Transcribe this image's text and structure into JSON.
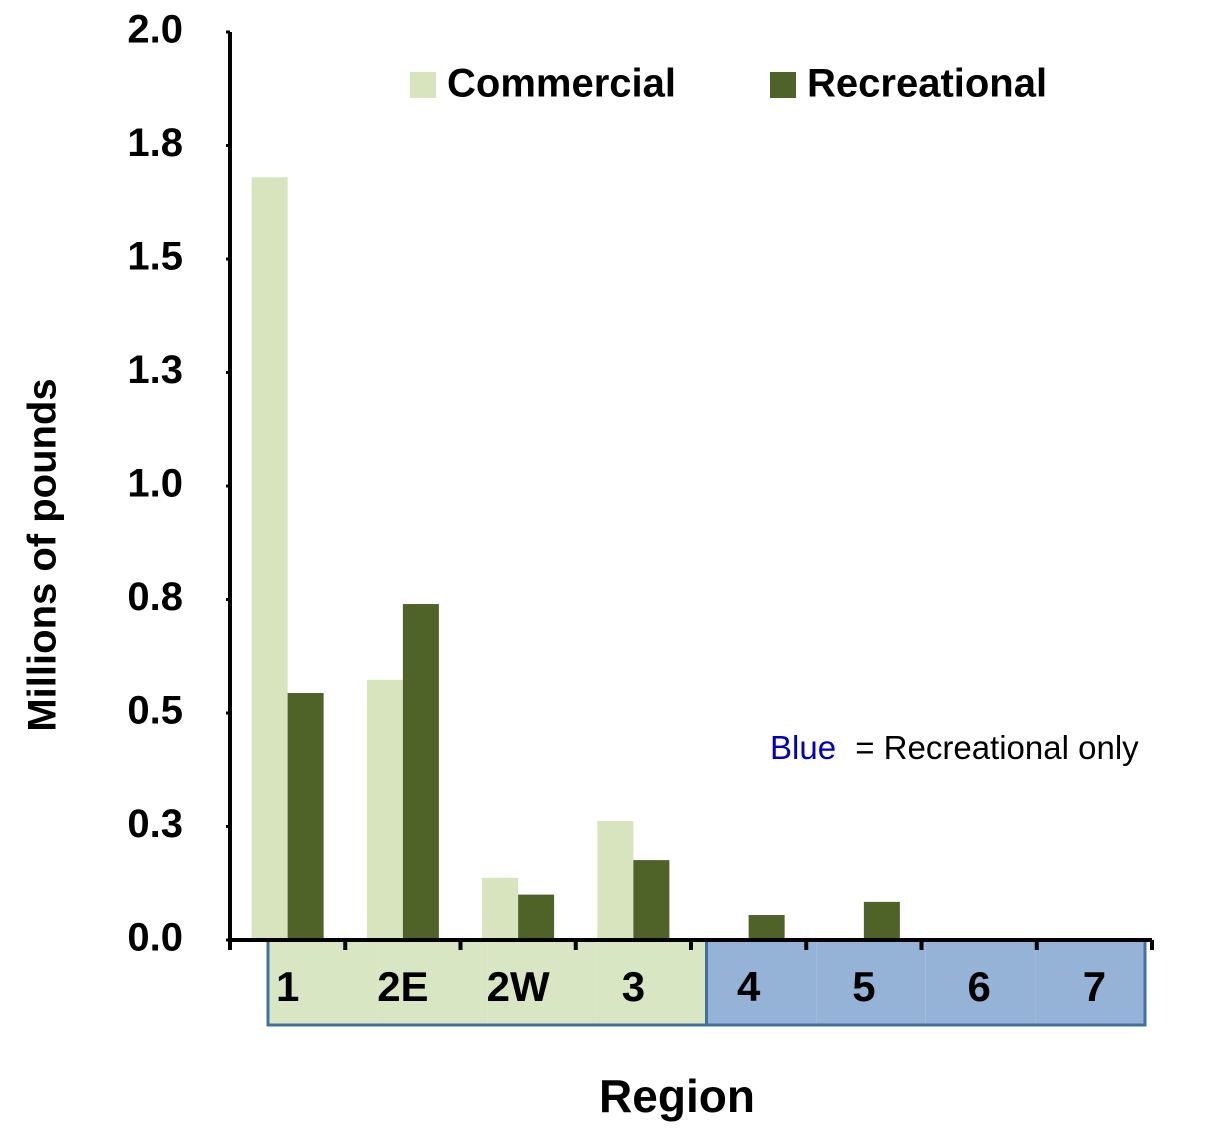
{
  "chart_data": {
    "type": "bar",
    "x_label": "Region",
    "y_label": "Millions of pounds",
    "categories": [
      "1",
      "2E",
      "2W",
      "3",
      "4",
      "5",
      "6",
      "7"
    ],
    "category_box_colors": [
      "#d9e6c3",
      "#d9e6c3",
      "#d9e6c3",
      "#d9e6c3",
      "#95b3d7",
      "#95b3d7",
      "#95b3d7",
      "#95b3d7"
    ],
    "series": [
      {
        "name": "Commercial",
        "color": "#d7e4bd",
        "values": [
          1.68,
          0.573,
          0.137,
          0.262,
          null,
          null,
          null,
          null
        ]
      },
      {
        "name": "Recreational",
        "color": "#4f6228",
        "values": [
          0.544,
          0.74,
          0.1,
          0.176,
          0.055,
          0.084,
          null,
          null
        ]
      }
    ],
    "ylim": [
      0,
      2
    ],
    "yticks": [
      {
        "value": 0,
        "label": "0.0"
      },
      {
        "value": 0.25,
        "label": "0.3"
      },
      {
        "value": 0.5,
        "label": "0.5"
      },
      {
        "value": 0.75,
        "label": "0.8"
      },
      {
        "value": 1,
        "label": "1.0"
      },
      {
        "value": 1.25,
        "label": "1.3"
      },
      {
        "value": 1.5,
        "label": "1.5"
      },
      {
        "value": 1.75,
        "label": "1.8"
      },
      {
        "value": 2,
        "label": "2.0"
      }
    ],
    "annotation": {
      "highlight": "Blue",
      "highlight_color": "#0000c0",
      "text": "= Recreational only"
    },
    "legend": "top-right",
    "grid": false
  }
}
